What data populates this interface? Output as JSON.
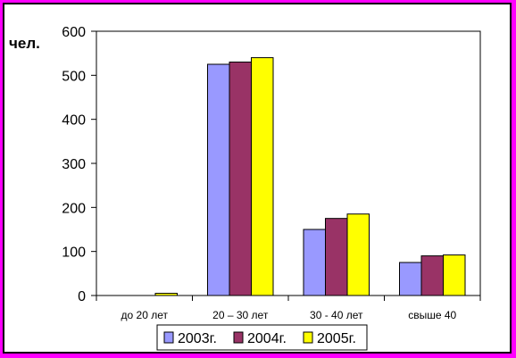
{
  "chart_data": {
    "type": "bar",
    "ylabel": "чел.",
    "xlabel": "",
    "categories": [
      "до 20 лет",
      "20 – 30 лет",
      "30 - 40 лет",
      "свыше 40"
    ],
    "series": [
      {
        "name": "2003г.",
        "values": [
          0,
          525,
          150,
          75
        ],
        "color": "#9999ff"
      },
      {
        "name": "2004г.",
        "values": [
          0,
          530,
          175,
          90
        ],
        "color": "#993366"
      },
      {
        "name": "2005г.",
        "values": [
          5,
          540,
          185,
          92
        ],
        "color": "#ffff00"
      }
    ],
    "ylim": [
      0,
      600
    ],
    "yticks": [
      0,
      100,
      200,
      300,
      400,
      500,
      600
    ],
    "grid": false,
    "legend": "bottom"
  }
}
